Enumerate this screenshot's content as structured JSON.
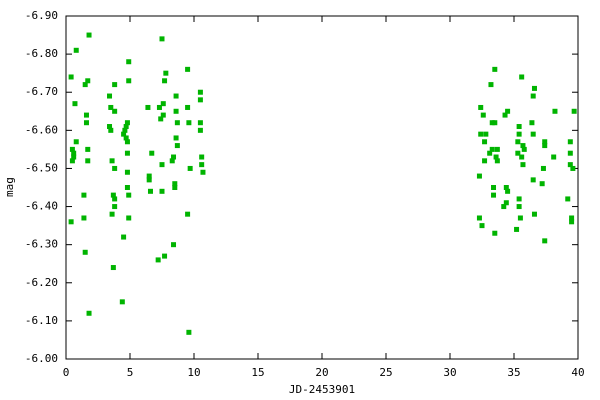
{
  "chart_data": {
    "type": "scatter",
    "xlabel": "JD-2453901",
    "ylabel": "mag",
    "color": "#00b400",
    "xlim": [
      0,
      40
    ],
    "xticks": [
      0,
      5,
      10,
      15,
      20,
      25,
      30,
      35,
      40
    ],
    "ylim": [
      -6.0,
      -6.9
    ],
    "yticks": [
      {
        "value": -6.0,
        "label": "-6.00"
      },
      {
        "value": -6.1,
        "label": "-6.10"
      },
      {
        "value": -6.2,
        "label": "-6.20"
      },
      {
        "value": -6.3,
        "label": "-6.30"
      },
      {
        "value": -6.4,
        "label": "-6.40"
      },
      {
        "value": -6.5,
        "label": "-6.50"
      },
      {
        "value": -6.6,
        "label": "-6.60"
      },
      {
        "value": -6.7,
        "label": "-6.70"
      },
      {
        "value": -6.8,
        "label": "-6.80"
      },
      {
        "value": -6.9,
        "label": "-6.90"
      }
    ],
    "x": [
      0.4,
      0.4,
      0.5,
      0.5,
      0.6,
      0.6,
      0.7,
      0.8,
      0.8,
      1.4,
      1.4,
      1.5,
      1.5,
      1.6,
      1.6,
      1.7,
      1.7,
      1.7,
      1.8,
      1.8,
      3.4,
      3.4,
      3.5,
      3.5,
      3.6,
      3.6,
      3.7,
      3.7,
      3.8,
      3.8,
      3.8,
      3.8,
      3.8,
      4.4,
      4.5,
      4.5,
      4.6,
      4.7,
      4.7,
      4.8,
      4.8,
      4.8,
      4.8,
      4.8,
      4.9,
      4.9,
      4.9,
      4.9,
      6.4,
      6.5,
      6.5,
      6.6,
      6.7,
      7.2,
      7.3,
      7.4,
      7.5,
      7.5,
      7.5,
      7.6,
      7.6,
      7.7,
      7.7,
      7.8,
      8.3,
      8.4,
      8.4,
      8.5,
      8.5,
      8.6,
      8.6,
      8.6,
      8.7,
      8.7,
      9.5,
      9.5,
      9.5,
      9.6,
      9.6,
      9.7,
      10.5,
      10.5,
      10.5,
      10.5,
      10.6,
      10.6,
      10.7,
      32.3,
      32.3,
      32.4,
      32.4,
      32.5,
      32.6,
      32.7,
      32.7,
      32.8,
      33.1,
      33.2,
      33.3,
      33.3,
      33.4,
      33.4,
      33.5,
      33.5,
      33.5,
      33.6,
      33.7,
      33.7,
      34.2,
      34.3,
      34.4,
      34.4,
      34.5,
      34.5,
      35.2,
      35.3,
      35.3,
      35.4,
      35.4,
      35.4,
      35.4,
      35.5,
      35.6,
      35.6,
      35.7,
      35.7,
      35.8,
      36.4,
      36.5,
      36.5,
      36.5,
      36.6,
      36.6,
      37.2,
      37.3,
      37.4,
      37.4,
      37.4,
      38.1,
      38.2,
      39.2,
      39.4,
      39.4,
      39.4,
      39.5,
      39.5,
      39.6,
      39.7
    ],
    "values": [
      -6.36,
      -6.74,
      -6.52,
      -6.55,
      -6.54,
      -6.53,
      -6.67,
      -6.57,
      -6.81,
      -6.43,
      -6.37,
      -6.28,
      -6.72,
      -6.62,
      -6.64,
      -6.73,
      -6.52,
      -6.55,
      -6.12,
      -6.85,
      -6.69,
      -6.61,
      -6.6,
      -6.66,
      -6.38,
      -6.52,
      -6.24,
      -6.43,
      -6.42,
      -6.4,
      -6.5,
      -6.72,
      -6.65,
      -6.15,
      -6.32,
      -6.59,
      -6.6,
      -6.58,
      -6.61,
      -6.62,
      -6.45,
      -6.49,
      -6.54,
      -6.57,
      -6.73,
      -6.43,
      -6.37,
      -6.78,
      -6.66,
      -6.47,
      -6.48,
      -6.44,
      -6.54,
      -6.26,
      -6.66,
      -6.63,
      -6.51,
      -6.44,
      -6.84,
      -6.64,
      -6.67,
      -6.73,
      -6.27,
      -6.75,
      -6.52,
      -6.53,
      -6.3,
      -6.46,
      -6.45,
      -6.69,
      -6.65,
      -6.58,
      -6.56,
      -6.62,
      -6.76,
      -6.66,
      -6.38,
      -6.62,
      -6.07,
      -6.5,
      -6.7,
      -6.68,
      -6.62,
      -6.6,
      -6.53,
      -6.51,
      -6.49,
      -6.37,
      -6.48,
      -6.59,
      -6.66,
      -6.35,
      -6.64,
      -6.52,
      -6.57,
      -6.59,
      -6.54,
      -6.72,
      -6.62,
      -6.55,
      -6.45,
      -6.43,
      -6.76,
      -6.33,
      -6.62,
      -6.53,
      -6.52,
      -6.55,
      -6.4,
      -6.64,
      -6.41,
      -6.45,
      -6.44,
      -6.65,
      -6.34,
      -6.54,
      -6.57,
      -6.59,
      -6.61,
      -6.42,
      -6.4,
      -6.37,
      -6.74,
      -6.53,
      -6.51,
      -6.56,
      -6.55,
      -6.62,
      -6.69,
      -6.59,
      -6.47,
      -6.71,
      -6.38,
      -6.46,
      -6.5,
      -6.57,
      -6.56,
      -6.31,
      -6.53,
      -6.65,
      -6.42,
      -6.57,
      -6.54,
      -6.51,
      -6.37,
      -6.36,
      -6.5,
      -6.65
    ]
  }
}
